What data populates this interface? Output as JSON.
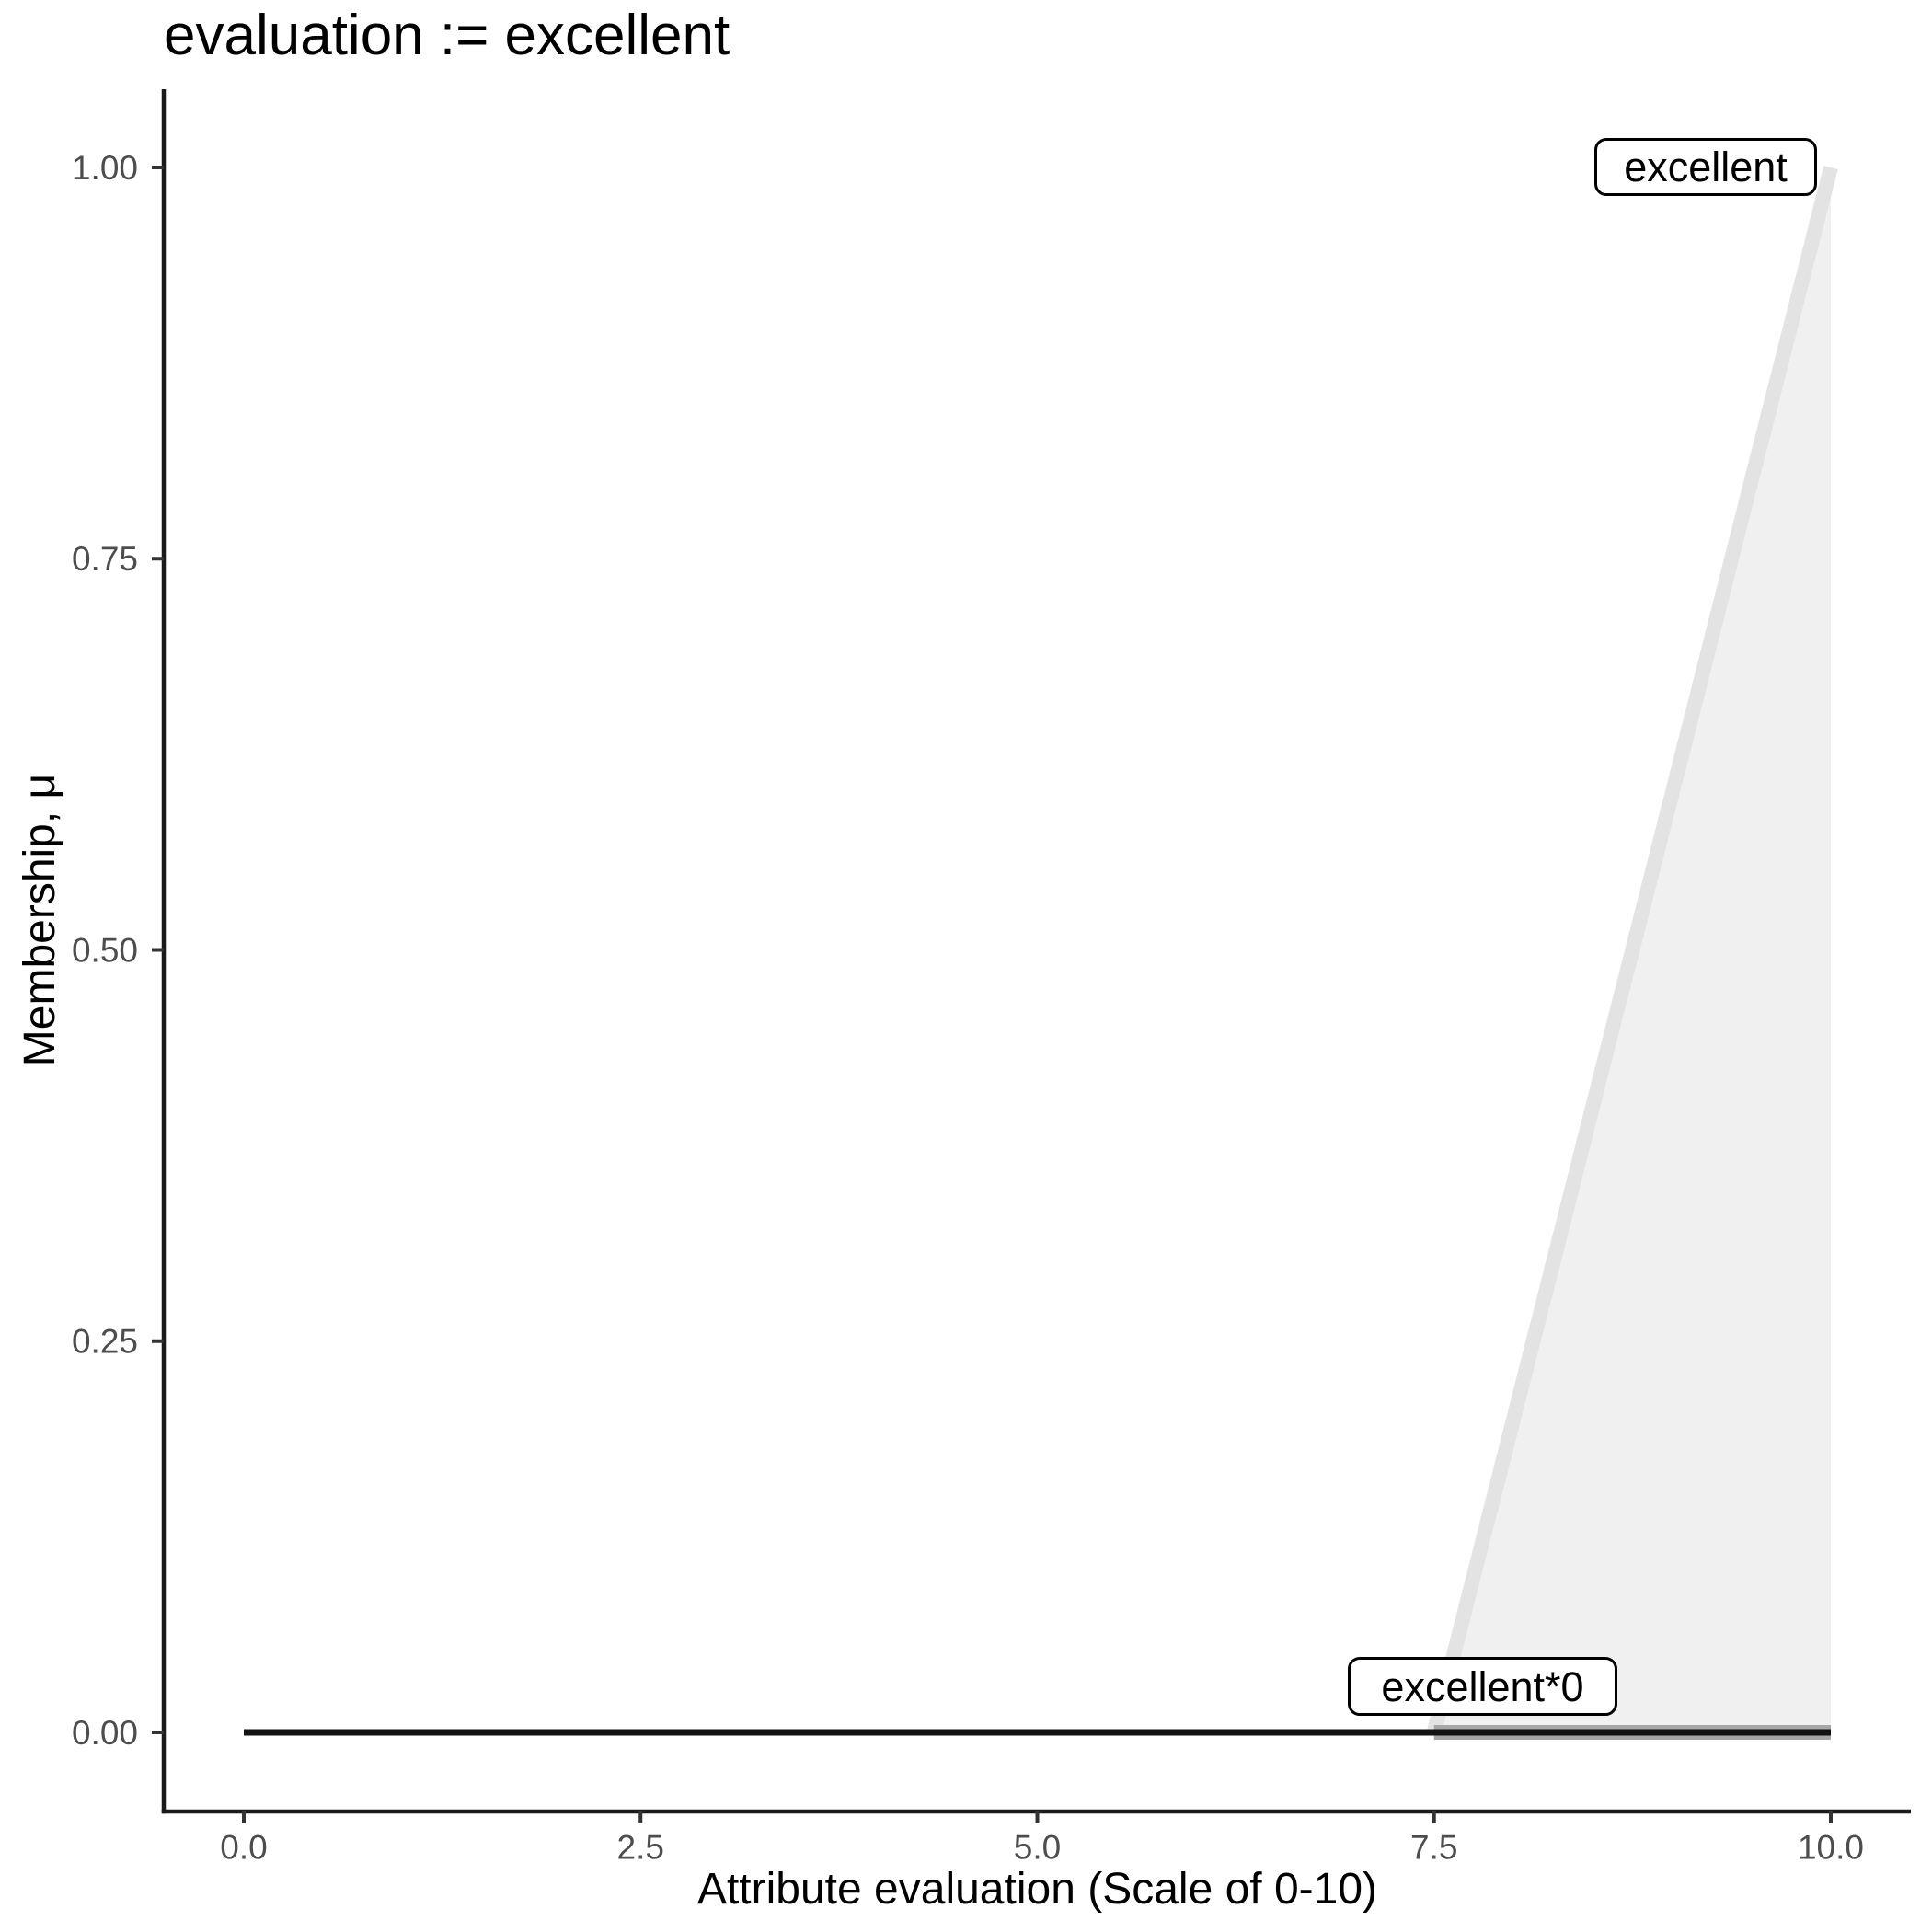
{
  "title": "evaluation := excellent",
  "x_axis": {
    "label": "Attribute evaluation (Scale of 0-10)",
    "tick_labels": [
      "0.0",
      "2.5",
      "5.0",
      "7.5",
      "10.0"
    ],
    "tick_values": [
      0,
      2.5,
      5,
      7.5,
      10
    ]
  },
  "y_axis": {
    "label": "Membership, μ",
    "tick_labels": [
      "0.00",
      "0.25",
      "0.50",
      "0.75",
      "1.00"
    ],
    "tick_values": [
      0,
      0.25,
      0.5,
      0.75,
      1
    ]
  },
  "chart_data": {
    "type": "area",
    "title": "evaluation := excellent",
    "xlabel": "Attribute evaluation (Scale of 0-10)",
    "ylabel": "Membership, μ",
    "x_range": [
      0,
      10
    ],
    "y_range": [
      0,
      1
    ],
    "grid": false,
    "legend": false,
    "series": [
      {
        "id": "excellent",
        "name": "excellent",
        "points": [
          [
            7.5,
            0
          ],
          [
            10,
            1
          ]
        ],
        "line_color": "#e3e3e3",
        "line_width": 16,
        "fill": "#f0f0f0",
        "fill_baseline": 0
      },
      {
        "id": "excellent-support-baseline",
        "name": "excellent support baseline",
        "points": [
          [
            7.5,
            0
          ],
          [
            10,
            0
          ]
        ],
        "line_color": "#a6a6a6",
        "line_width": 16
      },
      {
        "id": "excellent-times-0",
        "name": "excellent*0",
        "points": [
          [
            0,
            0
          ],
          [
            10,
            0
          ]
        ],
        "line_color": "#121212",
        "line_width": 7
      }
    ],
    "annotations": [
      {
        "text": "excellent",
        "anchor_x": 10,
        "anchor_y": 1
      },
      {
        "text": "excellent*0",
        "anchor_x": 7.8,
        "anchor_y": 0.03
      }
    ]
  },
  "colors": {
    "background": "#ffffff",
    "axis_line": "#1a1a1a",
    "tick_mark": "#333333",
    "tick_label": "#4d4d4d",
    "title_text": "#000000"
  }
}
